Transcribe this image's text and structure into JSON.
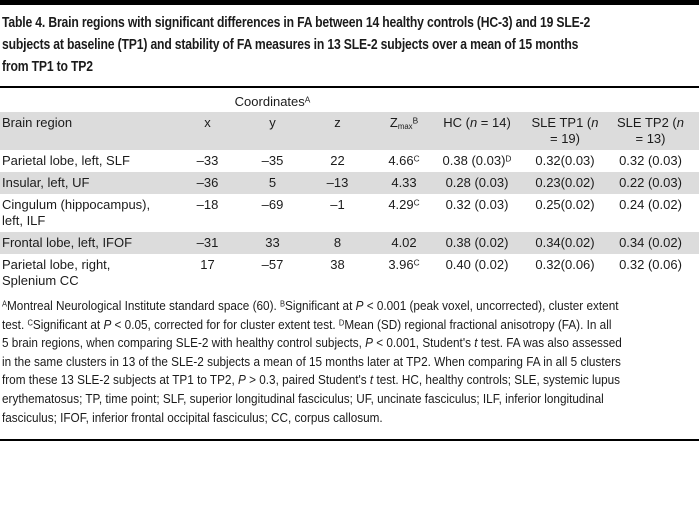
{
  "colors": {
    "rule": "#000000",
    "row_shade": "#dcdcdc",
    "text": "#1b1b1b",
    "background": "#ffffff"
  },
  "title": "Table 4. Brain regions with significant differences in FA between 14 healthy controls (HC-3) and 19 SLE-2\nsubjects at baseline (TP1) and stability of FA measures in 13 SLE-2 subjects over a mean of 15 months\nfrom TP1 to TP2",
  "table": {
    "coordinates_label": "Coordinates^A^",
    "headers": [
      "Brain region",
      "x",
      "y",
      "z",
      "Z~max~^B^",
      "HC (*n* = 14)",
      "SLE TP1 (*n*\n= 19)",
      "SLE TP2 (*n*\n= 13)"
    ],
    "rows": [
      [
        "Parietal lobe, left, SLF",
        "–33",
        "–35",
        "22",
        "4.66^C^",
        "0.38 (0.03)^D^",
        "0.32(0.03)",
        "0.32 (0.03)"
      ],
      [
        "Insular, left, UF",
        "–36",
        "5",
        "–13",
        "4.33",
        "0.28 (0.03)",
        "0.23(0.02)",
        "0.22 (0.03)"
      ],
      [
        "Cingulum (hippocampus),\nleft, ILF",
        "–18",
        "–69",
        "–1",
        "4.29^C^",
        "0.32 (0.03)",
        "0.25(0.02)",
        "0.24 (0.02)"
      ],
      [
        "Frontal lobe, left, IFOF",
        "–31",
        "33",
        "8",
        "4.02",
        "0.38 (0.02)",
        "0.34(0.02)",
        "0.34 (0.02)"
      ],
      [
        "Parietal lobe, right,\nSplenium CC",
        "17",
        "–57",
        "38",
        "3.96^C^",
        "0.40 (0.02)",
        "0.32(0.06)",
        "0.32 (0.06)"
      ]
    ],
    "shaded_row_indexes": [
      1,
      3
    ]
  },
  "footnote": "^A^Montreal Neurological Institute standard space (60). ^B^Significant at *P* < 0.001 (peak voxel, uncorrected), cluster extent\ntest. ^C^Significant at *P* < 0.05, corrected for for cluster extent test. ^D^Mean (SD) regional fractional anisotropy (FA). In all\n5 brain regions, when comparing SLE-2 with healthy control subjects, *P* < 0.001, Student's *t* test. FA was also assessed\nin the same clusters in 13 of the SLE-2 subjects a mean of 15 months later at TP2. When comparing FA in all 5 clusters\nfrom these 13 SLE-2 subjects at TP1 to TP2, *P* > 0.3, paired Student's *t* test. HC, healthy controls; SLE, systemic lupus\nerythematosus; TP, time point; SLF, superior longitudinal fasciculus; UF, uncinate fasciculus; ILF, inferior longitudinal\nfasciculus; IFOF, inferior frontal occipital fasciculus; CC, corpus callosum."
}
